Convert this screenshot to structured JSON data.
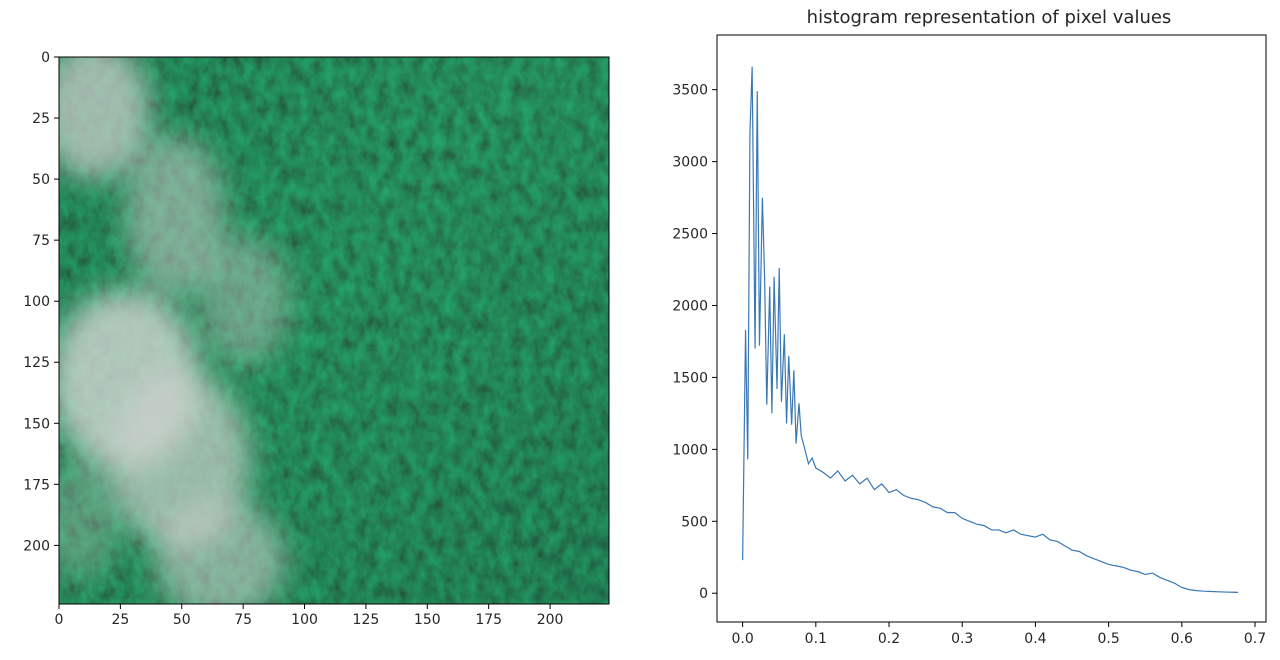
{
  "chart_data": [
    {
      "type": "image",
      "description": "aerial photo of a dense green conifer forest with white fog drifting along the left side",
      "xlim": [
        0,
        224
      ],
      "ylim": [
        224,
        0
      ],
      "xticks": [
        "0",
        "25",
        "50",
        "75",
        "100",
        "125",
        "150",
        "175",
        "200"
      ],
      "yticks": [
        "0",
        "25",
        "50",
        "75",
        "100",
        "125",
        "150",
        "175",
        "200"
      ],
      "colors": {
        "forest_dark": "#0d2414",
        "forest_mid": "#23572f",
        "forest_light": "#3f8550",
        "fog": "#d8dcd8"
      }
    },
    {
      "type": "line",
      "title": "histogram representation of pixel values",
      "xlim": [
        -0.035,
        0.715
      ],
      "ylim": [
        -200,
        3880
      ],
      "xticks": [
        "0.0",
        "0.1",
        "0.2",
        "0.3",
        "0.4",
        "0.5",
        "0.6",
        "0.7"
      ],
      "yticks": [
        "0",
        "500",
        "1000",
        "1500",
        "2000",
        "2500",
        "3000",
        "3500"
      ],
      "line_color": "#3a78b5",
      "series": [
        {
          "x": [
            0.0,
            0.004,
            0.007,
            0.01,
            0.013,
            0.017,
            0.02,
            0.023,
            0.027,
            0.03,
            0.033,
            0.037,
            0.04,
            0.043,
            0.047,
            0.05,
            0.053,
            0.057,
            0.06,
            0.063,
            0.067,
            0.07,
            0.073,
            0.077,
            0.08,
            0.085,
            0.09,
            0.095,
            0.1,
            0.11,
            0.12,
            0.13,
            0.14,
            0.15,
            0.16,
            0.17,
            0.18,
            0.19,
            0.2,
            0.21,
            0.22,
            0.23,
            0.24,
            0.25,
            0.26,
            0.27,
            0.28,
            0.29,
            0.3,
            0.31,
            0.32,
            0.33,
            0.34,
            0.35,
            0.36,
            0.37,
            0.38,
            0.39,
            0.4,
            0.41,
            0.42,
            0.43,
            0.44,
            0.45,
            0.46,
            0.47,
            0.48,
            0.49,
            0.5,
            0.51,
            0.52,
            0.53,
            0.54,
            0.55,
            0.56,
            0.57,
            0.58,
            0.59,
            0.6,
            0.61,
            0.62,
            0.63,
            0.64,
            0.65,
            0.66,
            0.67,
            0.677
          ],
          "y": [
            230,
            1830,
            930,
            3200,
            3660,
            1700,
            3490,
            1720,
            2750,
            2200,
            1310,
            2130,
            1250,
            2200,
            1420,
            2260,
            1330,
            1800,
            1180,
            1650,
            1170,
            1550,
            1040,
            1320,
            1100,
            1000,
            900,
            940,
            870,
            840,
            800,
            850,
            780,
            820,
            760,
            800,
            720,
            760,
            700,
            720,
            680,
            660,
            650,
            630,
            600,
            590,
            560,
            560,
            520,
            500,
            480,
            470,
            440,
            440,
            420,
            440,
            410,
            400,
            390,
            410,
            370,
            360,
            330,
            300,
            290,
            260,
            240,
            220,
            200,
            190,
            180,
            160,
            150,
            130,
            140,
            110,
            90,
            70,
            40,
            25,
            18,
            14,
            12,
            10,
            8,
            7,
            6
          ]
        }
      ]
    }
  ]
}
